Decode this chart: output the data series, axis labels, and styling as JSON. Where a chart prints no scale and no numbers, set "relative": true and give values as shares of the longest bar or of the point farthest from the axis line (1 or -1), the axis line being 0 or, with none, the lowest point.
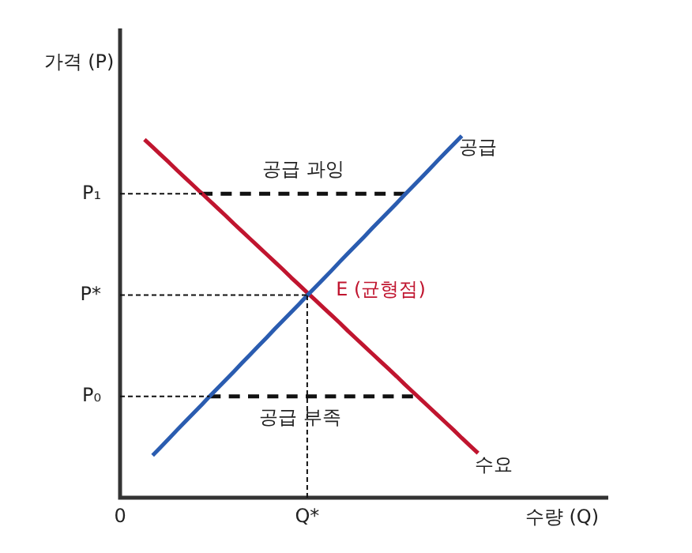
{
  "chart_data": {
    "type": "line",
    "xlabel": "수량 (Q)",
    "ylabel": "가격 (P)",
    "relative": true,
    "legend": false,
    "marker": "none",
    "categories": [
      "0",
      null,
      null,
      null,
      null,
      null,
      null,
      null,
      null,
      null,
      null,
      null,
      null,
      null,
      null,
      null,
      null,
      null,
      null,
      null,
      null,
      null,
      null,
      "Q*",
      null,
      null,
      null,
      null,
      null,
      null,
      null,
      null,
      null,
      null,
      null,
      null,
      null,
      null,
      null,
      null,
      null,
      null,
      null,
      null,
      null,
      null,
      null,
      null,
      null,
      null,
      null,
      null,
      null,
      null,
      null,
      null,
      null,
      null,
      null,
      null,
      null
    ],
    "series": [
      {
        "name": "공급",
        "color": "#2a5cb0",
        "line_style": "solid",
        "values": [
          null,
          null,
          null,
          null,
          0.117,
          0.14,
          0.163,
          0.187,
          0.21,
          0.233,
          0.256,
          0.28,
          0.303,
          0.326,
          0.349,
          0.373,
          0.396,
          0.419,
          0.442,
          0.466,
          0.489,
          0.512,
          0.535,
          0.559,
          0.582,
          0.605,
          0.628,
          0.652,
          0.675,
          0.698,
          0.721,
          0.745,
          0.768,
          0.791,
          0.814,
          0.838,
          0.861,
          0.884,
          0.907,
          0.931,
          0.954,
          0.977,
          1,
          null,
          null,
          null,
          null,
          null,
          null,
          null,
          null,
          null,
          null,
          null,
          null,
          null,
          null,
          null,
          null,
          null,
          null
        ]
      },
      {
        "name": "수요",
        "color": "#c0152f",
        "line_style": "solid",
        "values": [
          null,
          null,
          null,
          0.99,
          0.969,
          0.948,
          0.927,
          0.905,
          0.884,
          0.863,
          0.842,
          0.821,
          0.8,
          0.779,
          0.757,
          0.736,
          0.715,
          0.694,
          0.673,
          0.652,
          0.631,
          0.609,
          0.588,
          0.567,
          0.546,
          0.525,
          0.504,
          0.483,
          0.461,
          0.44,
          0.419,
          0.398,
          0.377,
          0.356,
          0.335,
          0.313,
          0.292,
          0.271,
          0.25,
          0.229,
          0.208,
          0.187,
          0.165,
          0.144,
          0.123,
          null,
          null,
          null,
          null,
          null,
          null,
          null,
          null,
          null,
          null,
          null,
          null,
          null,
          null,
          null,
          null
        ]
      },
      {
        "color": "#111111",
        "line_style": "dashed",
        "values": [
          null,
          null,
          null,
          null,
          null,
          null,
          null,
          null,
          null,
          null,
          0.84,
          0.84,
          0.84,
          0.84,
          0.84,
          0.84,
          0.84,
          0.84,
          0.84,
          0.84,
          0.84,
          0.84,
          0.84,
          0.84,
          0.84,
          0.84,
          0.84,
          0.84,
          0.84,
          0.84,
          0.84,
          0.84,
          0.84,
          0.84,
          0.84,
          0.84,
          null,
          null,
          null,
          null,
          null,
          null,
          null,
          null,
          null,
          null,
          null,
          null,
          null,
          null,
          null,
          null,
          null,
          null,
          null,
          null,
          null,
          null,
          null,
          null,
          null
        ]
      },
      {
        "color": "#111111",
        "line_style": "dashed",
        "values": [
          null,
          null,
          null,
          null,
          null,
          null,
          null,
          null,
          null,
          null,
          null,
          0.28,
          0.28,
          0.28,
          0.28,
          0.28,
          0.28,
          0.28,
          0.28,
          0.28,
          0.28,
          0.28,
          0.28,
          0.28,
          0.28,
          0.28,
          0.28,
          0.28,
          0.28,
          0.28,
          0.28,
          0.28,
          0.28,
          0.28,
          0.28,
          0.28,
          0.28,
          null,
          null,
          null,
          null,
          null,
          null,
          null,
          null,
          null,
          null,
          null,
          null,
          null,
          null,
          null,
          null,
          null,
          null,
          null,
          null,
          null,
          null,
          null,
          null
        ]
      }
    ],
    "ref_lines": [
      {
        "axis": "y",
        "value": 0.84,
        "label": "P₁",
        "line_style": "dotted"
      },
      {
        "axis": "y",
        "value": 0.56,
        "label": "P*",
        "line_style": "dotted"
      },
      {
        "axis": "y",
        "value": 0.28,
        "label": "P₀",
        "line_style": "dotted"
      },
      {
        "axis": "x",
        "value": "Q*",
        "line_style": "dotted"
      }
    ],
    "annotations": [
      "공급 과잉",
      "공급 부족",
      "E (균형점)"
    ]
  }
}
